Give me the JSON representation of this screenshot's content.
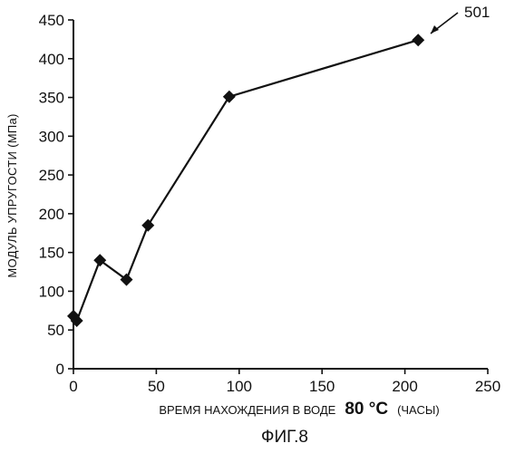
{
  "chart_data": {
    "type": "line",
    "title": "",
    "x": [
      0,
      2,
      16,
      32,
      45,
      94,
      208
    ],
    "y": [
      68,
      62,
      140,
      115,
      185,
      351,
      424
    ],
    "xlim": [
      0,
      250
    ],
    "ylim": [
      0,
      450
    ],
    "x_ticks": [
      0,
      50,
      100,
      150,
      200,
      250
    ],
    "y_ticks": [
      0,
      50,
      100,
      150,
      200,
      250,
      300,
      350,
      400,
      450
    ],
    "ylabel": "МОДУЛЬ УПРУГОСТИ   (МПа)",
    "xlabel_parts": [
      "ВРЕМЯ НАХОЖДЕНИЯ В ВОДЕ",
      "80 °C",
      "(ЧАСЫ)"
    ],
    "reference_label": "501",
    "figure_label": "ФИГ.8",
    "grid": false,
    "marker": "diamond",
    "color": "#111111"
  }
}
